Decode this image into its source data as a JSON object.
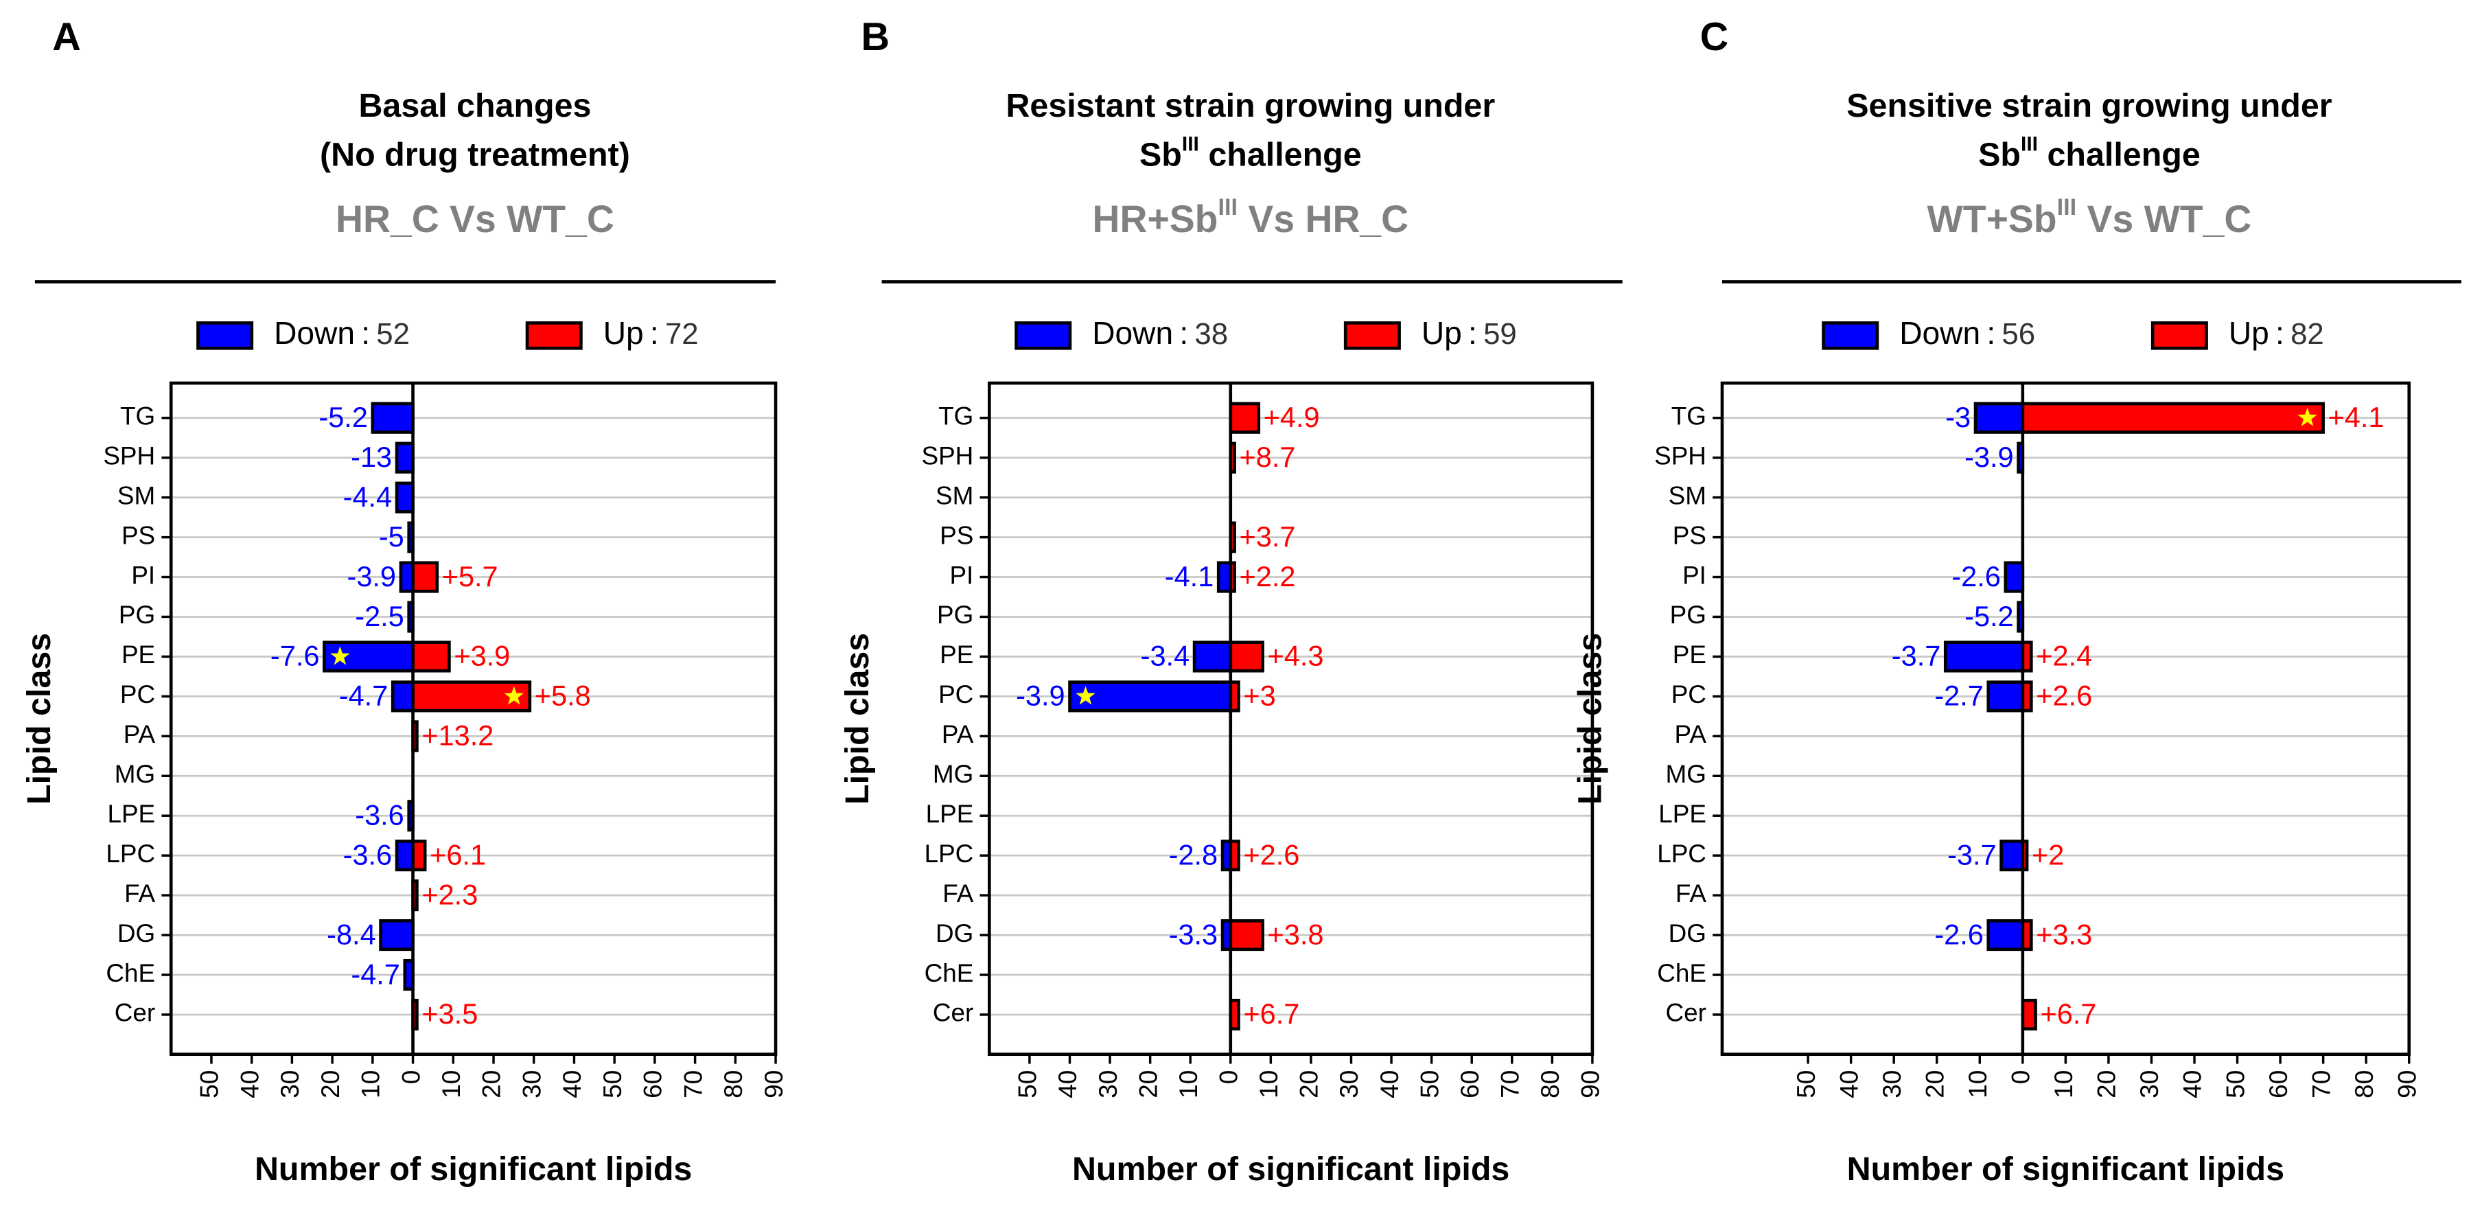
{
  "chart_data": [
    {
      "type": "bar",
      "orientation": "horizontal",
      "panel": "A",
      "title": [
        [
          "Basal changes"
        ],
        [
          "(No drug treatment)"
        ]
      ],
      "subtitle": [
        "HR_C Vs WT_C"
      ],
      "categories": [
        "TG",
        "SPH",
        "SM",
        "PS",
        "PI",
        "PG",
        "PE",
        "PC",
        "PA",
        "MG",
        "LPE",
        "LPC",
        "FA",
        "DG",
        "ChE",
        "Cer"
      ],
      "series": [
        {
          "name": "Down",
          "color": "#0000ff",
          "count": 52,
          "values": [
            -10,
            -4,
            -4,
            -1,
            -3,
            -1,
            -22,
            -5,
            null,
            null,
            -1,
            -4,
            null,
            -8,
            -2,
            null
          ],
          "labels": [
            "-5.2",
            "-13",
            "-4.4",
            "-5",
            "-3.9",
            "-2.5",
            "-7.6",
            "-4.7",
            null,
            null,
            "-3.6",
            "-3.6",
            null,
            "-8.4",
            "-4.7",
            null
          ],
          "stars": [
            6
          ]
        },
        {
          "name": "Up",
          "color": "#ff0000",
          "count": 72,
          "values": [
            null,
            null,
            null,
            null,
            6,
            null,
            9,
            29,
            1,
            null,
            null,
            3,
            1,
            null,
            null,
            1
          ],
          "labels": [
            null,
            null,
            null,
            null,
            "+5.7",
            null,
            "+3.9",
            "+5.8",
            "+13.2",
            null,
            null,
            "+6.1",
            "+2.3",
            null,
            null,
            "+3.5"
          ],
          "stars": [
            7
          ]
        }
      ],
      "legend_separator": ":",
      "xlabel": "Number of significant lipids",
      "ylabel": "Lipid class",
      "xlim": [
        -60,
        90
      ],
      "xticks": [
        {
          "value": -50,
          "label": "50"
        },
        {
          "value": -40,
          "label": "40"
        },
        {
          "value": -30,
          "label": "30"
        },
        {
          "value": -20,
          "label": "20"
        },
        {
          "value": -10,
          "label": "10"
        },
        0,
        10,
        20,
        30,
        40,
        50,
        60,
        70,
        80,
        90
      ],
      "grid": true
    },
    {
      "type": "bar",
      "orientation": "horizontal",
      "panel": "B",
      "title": [
        [
          "Resistant strain growing under"
        ],
        [
          "Sb",
          "III",
          " challenge"
        ]
      ],
      "subtitle": [
        "HR+Sb",
        "III",
        " Vs HR_C"
      ],
      "categories": [
        "TG",
        "SPH",
        "SM",
        "PS",
        "PI",
        "PG",
        "PE",
        "PC",
        "PA",
        "MG",
        "LPE",
        "LPC",
        "FA",
        "DG",
        "ChE",
        "Cer"
      ],
      "series": [
        {
          "name": "Down",
          "color": "#0000ff",
          "count": 38,
          "values": [
            null,
            null,
            null,
            null,
            -3,
            null,
            -9,
            -40,
            null,
            null,
            null,
            -2,
            null,
            -2,
            null,
            null
          ],
          "labels": [
            null,
            null,
            null,
            null,
            "-4.1",
            null,
            "-3.4",
            "-3.9",
            null,
            null,
            null,
            "-2.8",
            null,
            "-3.3",
            null,
            null
          ],
          "stars": [
            7
          ]
        },
        {
          "name": "Up",
          "color": "#ff0000",
          "count": 59,
          "values": [
            7,
            1,
            null,
            1,
            1,
            null,
            8,
            2,
            null,
            null,
            null,
            2,
            null,
            8,
            null,
            2
          ],
          "labels": [
            "+4.9",
            "+8.7",
            null,
            "+3.7",
            "+2.2",
            null,
            "+4.3",
            "+3",
            null,
            null,
            null,
            "+2.6",
            null,
            "+3.8",
            null,
            "+6.7"
          ],
          "stars": []
        }
      ],
      "legend_separator": ":",
      "xlabel": "Number of significant lipids",
      "ylabel": "Lipid class",
      "xlim": [
        -60,
        90
      ],
      "xticks": [
        {
          "value": -50,
          "label": "50"
        },
        {
          "value": -40,
          "label": "40"
        },
        {
          "value": -30,
          "label": "30"
        },
        {
          "value": -20,
          "label": "20"
        },
        {
          "value": -10,
          "label": "10"
        },
        0,
        10,
        20,
        30,
        40,
        50,
        60,
        70,
        80,
        90
      ],
      "grid": true
    },
    {
      "type": "bar",
      "orientation": "horizontal",
      "panel": "C",
      "title": [
        [
          "Sensitive strain growing under"
        ],
        [
          "Sb",
          "III",
          " challenge"
        ]
      ],
      "subtitle": [
        "WT+Sb",
        "III",
        " Vs WT_C"
      ],
      "categories": [
        "TG",
        "SPH",
        "SM",
        "PS",
        "PI",
        "PG",
        "PE",
        "PC",
        "PA",
        "MG",
        "LPE",
        "LPC",
        "FA",
        "DG",
        "ChE",
        "Cer"
      ],
      "series": [
        {
          "name": "Down",
          "color": "#0000ff",
          "count": 56,
          "values": [
            -11,
            -1,
            null,
            null,
            -4,
            -1,
            -18,
            -8,
            null,
            null,
            null,
            -5,
            null,
            -8,
            null,
            null
          ],
          "labels": [
            "-3",
            "-3.9",
            null,
            null,
            "-2.6",
            "-5.2",
            "-3.7",
            "-2.7",
            null,
            null,
            null,
            "-3.7",
            null,
            "-2.6",
            null,
            null
          ],
          "stars": []
        },
        {
          "name": "Up",
          "color": "#ff0000",
          "count": 82,
          "values": [
            70,
            null,
            null,
            null,
            null,
            null,
            2,
            2,
            null,
            null,
            null,
            1,
            null,
            2,
            null,
            3
          ],
          "labels": [
            "+4.1",
            null,
            null,
            null,
            null,
            null,
            "+2.4",
            "+2.6",
            null,
            null,
            null,
            "+2",
            null,
            "+3.3",
            null,
            "+6.7"
          ],
          "stars": [
            0
          ]
        }
      ],
      "legend_separator": ":",
      "xlabel": "Number of significant lipids",
      "ylabel": "Lipid class",
      "xlim": [
        -70,
        90
      ],
      "xticks": [
        {
          "value": -50,
          "label": "50"
        },
        {
          "value": -40,
          "label": "40"
        },
        {
          "value": -30,
          "label": "30"
        },
        {
          "value": -20,
          "label": "20"
        },
        {
          "value": -10,
          "label": "10"
        },
        0,
        10,
        20,
        30,
        40,
        50,
        60,
        70,
        80,
        90
      ],
      "grid": true
    }
  ]
}
